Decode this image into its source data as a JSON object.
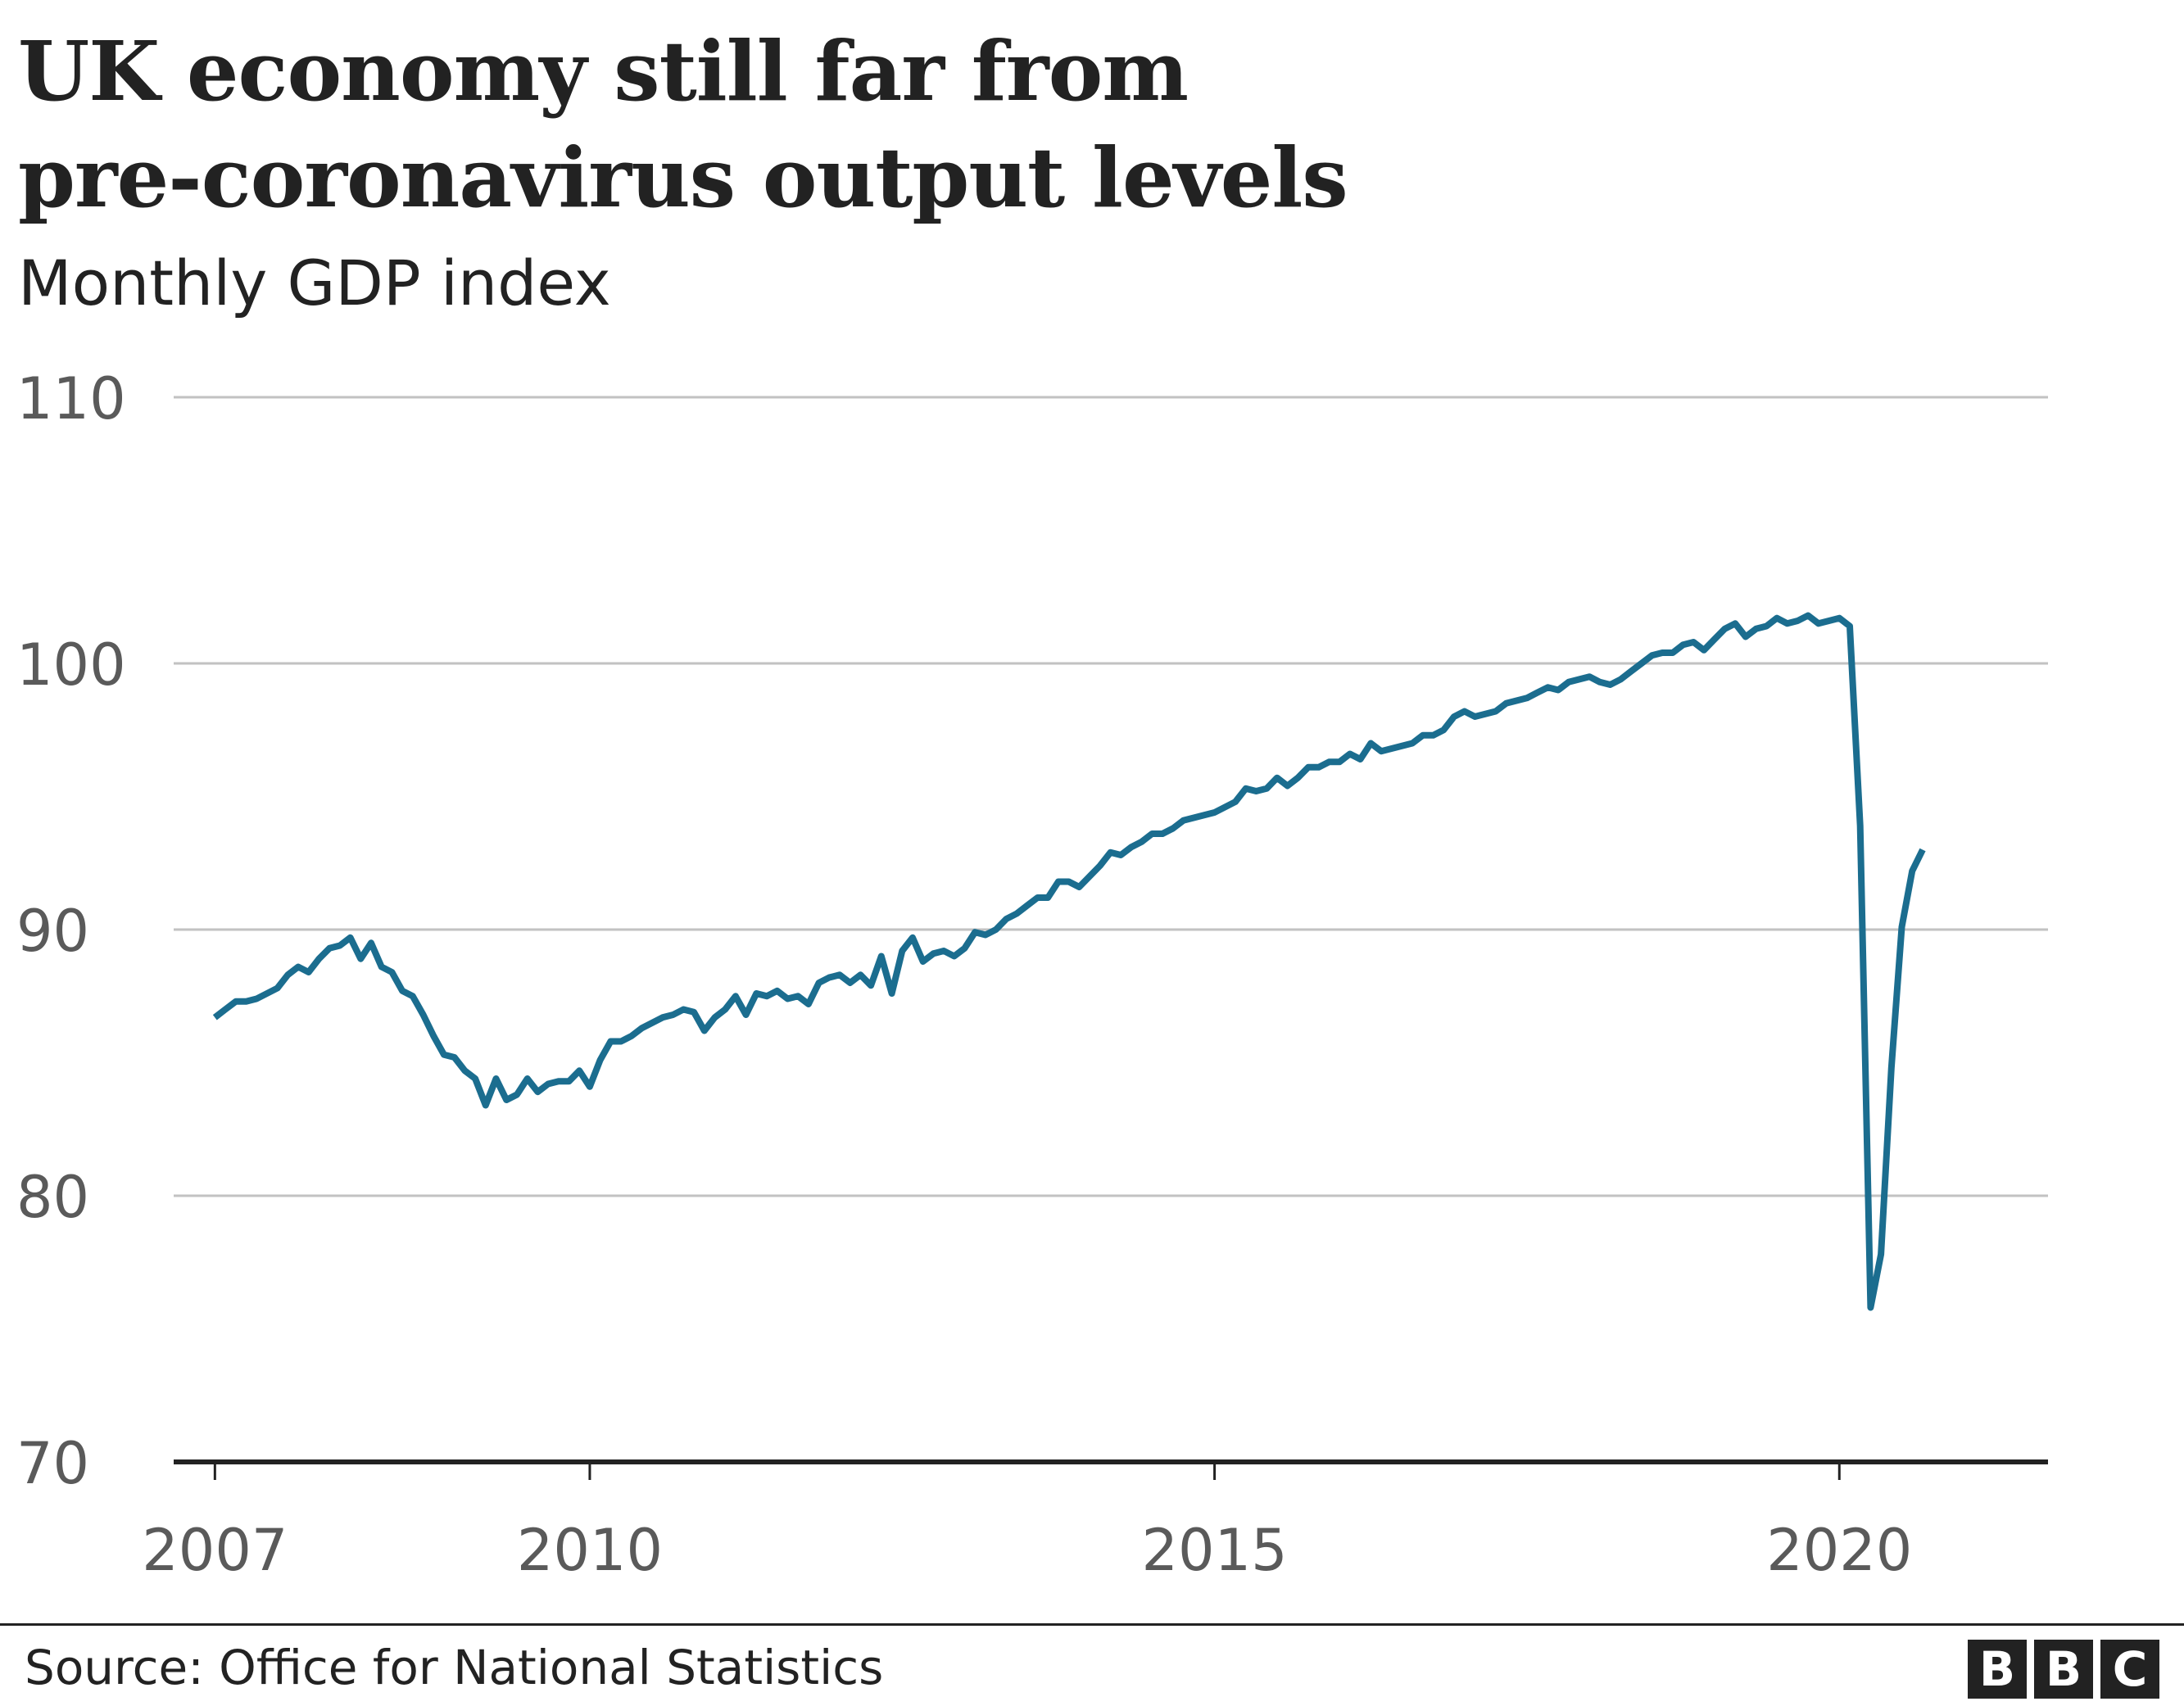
{
  "header": {
    "title_line1": "UK economy still far from",
    "title_line2": "pre-coronavirus output levels",
    "subtitle": "Monthly GDP index"
  },
  "colors": {
    "series": "#1b6d8f",
    "grid": "#c2c2c2",
    "axis": "#222222",
    "tick_text": "#5a5a5a",
    "text": "#222222"
  },
  "footer": {
    "source": "Source: Office for National Statistics",
    "logo_letters": [
      "B",
      "B",
      "C"
    ]
  },
  "chart_data": {
    "type": "line",
    "title": "UK economy still far from pre-coronavirus output levels",
    "subtitle": "Monthly GDP index",
    "xlabel": "",
    "ylabel": "",
    "ylim": [
      70,
      110
    ],
    "yticks": [
      70,
      80,
      90,
      100,
      110
    ],
    "xlim": [
      2006.67,
      2021.67
    ],
    "xticks": [
      2007,
      2010,
      2015,
      2020
    ],
    "grid": true,
    "legend": "none",
    "series": [
      {
        "name": "Monthly GDP index",
        "start": "2007-01",
        "frequency": "monthly",
        "values": [
          86.7,
          87.0,
          87.3,
          87.3,
          87.4,
          87.6,
          87.8,
          88.3,
          88.6,
          88.4,
          88.9,
          89.3,
          89.4,
          89.7,
          88.9,
          89.5,
          88.6,
          88.4,
          87.7,
          87.5,
          86.8,
          86.0,
          85.3,
          85.2,
          84.7,
          84.4,
          83.4,
          84.4,
          83.6,
          83.8,
          84.4,
          83.9,
          84.2,
          84.3,
          84.3,
          84.7,
          84.1,
          85.1,
          85.8,
          85.8,
          86.0,
          86.3,
          86.5,
          86.7,
          86.8,
          87.0,
          86.9,
          86.2,
          86.7,
          87.0,
          87.5,
          86.8,
          87.6,
          87.5,
          87.7,
          87.4,
          87.5,
          87.2,
          88.0,
          88.2,
          88.3,
          88.0,
          88.3,
          87.9,
          89.0,
          87.6,
          89.2,
          89.7,
          88.8,
          89.1,
          89.2,
          89.0,
          89.3,
          89.9,
          89.8,
          90.0,
          90.4,
          90.6,
          90.9,
          91.2,
          91.2,
          91.8,
          91.8,
          91.6,
          92.0,
          92.4,
          92.9,
          92.8,
          93.1,
          93.3,
          93.6,
          93.6,
          93.8,
          94.1,
          94.2,
          94.3,
          94.4,
          94.6,
          94.8,
          95.3,
          95.2,
          95.3,
          95.7,
          95.4,
          95.7,
          96.1,
          96.1,
          96.3,
          96.3,
          96.6,
          96.4,
          97.0,
          96.7,
          96.8,
          96.9,
          97.0,
          97.3,
          97.3,
          97.5,
          98.0,
          98.2,
          98.0,
          98.1,
          98.2,
          98.5,
          98.6,
          98.7,
          98.9,
          99.1,
          99.0,
          99.3,
          99.4,
          99.5,
          99.3,
          99.2,
          99.4,
          99.7,
          100.0,
          100.3,
          100.4,
          100.4,
          100.7,
          100.8,
          100.5,
          100.9,
          101.3,
          101.5,
          101.0,
          101.3,
          101.4,
          101.7,
          101.5,
          101.6,
          101.8,
          101.5,
          101.6,
          101.7,
          101.4,
          93.9,
          75.8,
          77.8,
          84.8,
          90.1,
          92.2,
          93.0
        ]
      }
    ]
  }
}
